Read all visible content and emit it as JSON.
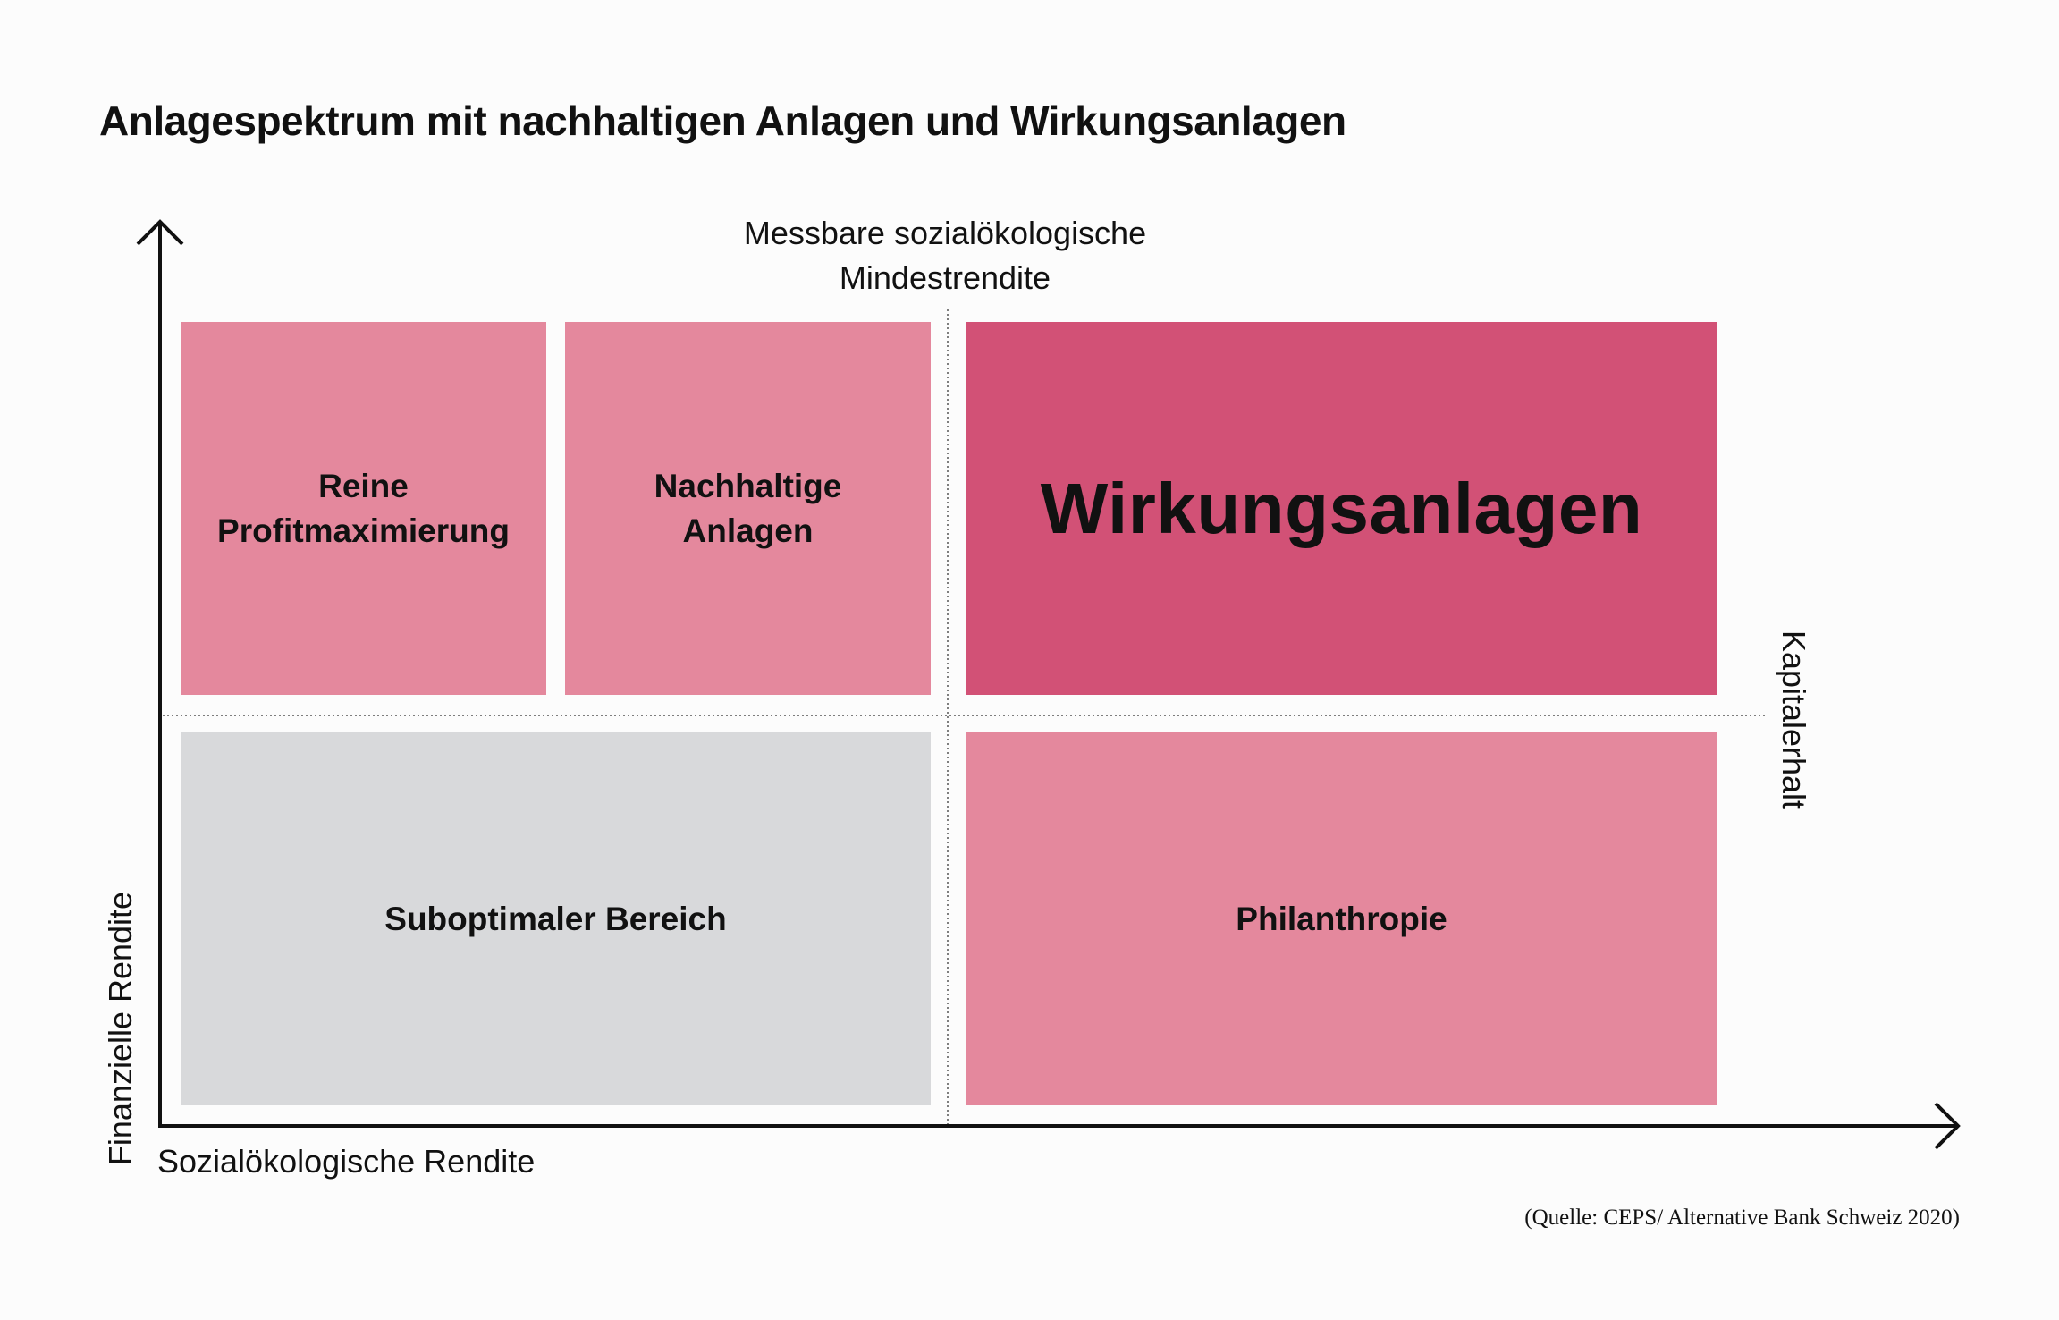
{
  "title": "Anlagespektrum mit nachhaltigen Anlagen und Wirkungsanlagen",
  "top_label": {
    "line1": "Messbare sozialökologische",
    "line2": "Mindestrendite"
  },
  "boxes": {
    "profit": {
      "line1": "Reine",
      "line2": "Profitmaximierung"
    },
    "sustainable": {
      "line1": "Nachhaltige",
      "line2": "Anlagen"
    },
    "impact": "Wirkungsanlagen",
    "suboptimal": "Suboptimaler Bereich",
    "philanthropy": "Philanthropie"
  },
  "axes": {
    "x_label": "Sozialökologische Rendite",
    "y_label": "Finanzielle Rendite",
    "right_label": "Kapitalerhalt"
  },
  "source": "(Quelle: CEPS/ Alternative Bank Schweiz 2020)",
  "colors": {
    "light_pink": "#e4889d",
    "dark_pink": "#d25176",
    "grey": "#d8d9db",
    "axis": "#111111"
  }
}
